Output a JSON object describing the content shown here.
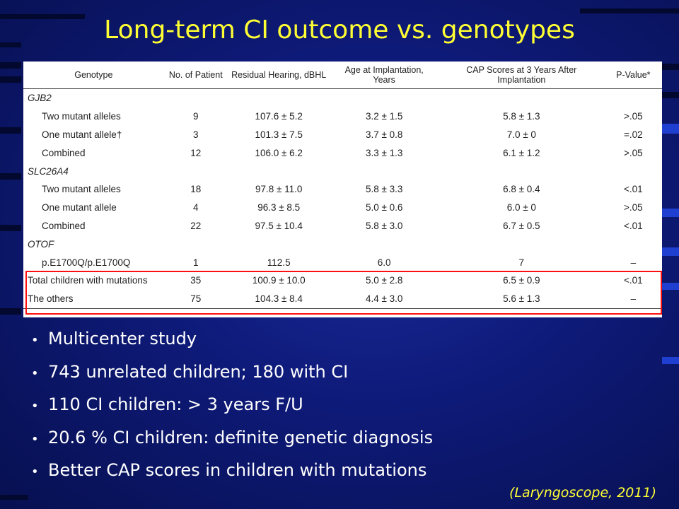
{
  "title": "Long-term CI outcome vs. genotypes",
  "table": {
    "headers": [
      "Genotype",
      "No. of Patient",
      "Residual Hearing, dBHL",
      "Age at Implantation, Years",
      "CAP Scores at 3 Years After Implantation",
      "P-Value*"
    ],
    "rows": [
      {
        "group": "GJB2"
      },
      {
        "cells": [
          "Two mutant alleles",
          "9",
          "107.6 ± 5.2",
          "3.2 ± 1.5",
          "5.8 ± 1.3",
          ">.05"
        ]
      },
      {
        "cells": [
          "One mutant allele†",
          "3",
          "101.3 ± 7.5",
          "3.7 ± 0.8",
          "7.0 ± 0",
          "=.02"
        ]
      },
      {
        "cells": [
          "Combined",
          "12",
          "106.0 ± 6.2",
          "3.3 ± 1.3",
          "6.1 ± 1.2",
          ">.05"
        ]
      },
      {
        "group": "SLC26A4"
      },
      {
        "cells": [
          "Two mutant alleles",
          "18",
          "97.8 ± 11.0",
          "5.8 ± 3.3",
          "6.8 ± 0.4",
          "<.01"
        ]
      },
      {
        "cells": [
          "One mutant allele",
          "4",
          "96.3 ± 8.5",
          "5.0 ± 0.6",
          "6.0 ± 0",
          ">.05"
        ]
      },
      {
        "cells": [
          "Combined",
          "22",
          "97.5 ± 10.4",
          "5.8 ± 3.0",
          "6.7 ± 0.5",
          "<.01"
        ]
      },
      {
        "group": "OTOF"
      },
      {
        "cells": [
          "p.E1700Q/p.E1700Q",
          "1",
          "112.5",
          "6.0",
          "7",
          "–"
        ]
      },
      {
        "cells": [
          "Total children with mutations",
          "35",
          "100.9 ± 10.0",
          "5.0 ± 2.8",
          "6.5 ± 0.9",
          "<.01"
        ],
        "flush": true
      },
      {
        "cells": [
          "The others",
          "75",
          "104.3 ± 8.4",
          "4.4 ± 3.0",
          "5.6 ± 1.3",
          "–"
        ],
        "flush": true,
        "last": true
      }
    ]
  },
  "bullets": [
    "Multicenter study",
    "743 unrelated children; 180 with CI",
    "110 CI children: > 3 years F/U",
    "20.6 % CI children: definite genetic diagnosis",
    "Better CAP scores in children with mutations"
  ],
  "bullet_glyph": "•",
  "citation": "(Laryngoscope, 2011)",
  "colors": {
    "title": "#ffff33",
    "highlight": "#ff1010",
    "background": "#0e1a78"
  }
}
